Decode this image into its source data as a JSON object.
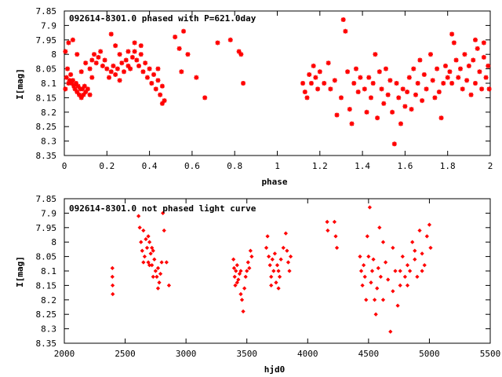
{
  "chart_data": [
    {
      "type": "scatter",
      "title": "092614-8301.0 phased with P=621.0day",
      "xlabel": "phase",
      "ylabel": "I[mag]",
      "xlim": [
        0,
        2
      ],
      "ylim": [
        8.35,
        7.85
      ],
      "y_inverted": true,
      "grid": false,
      "marker": "star",
      "color": "#ff0000",
      "xticks": [
        "0",
        "0.2",
        "0.4",
        "0.6",
        "0.8",
        "1",
        "1.2",
        "1.4",
        "1.6",
        "1.8",
        "2"
      ],
      "yticks": [
        "7.85",
        "7.9",
        "7.95",
        "8",
        "8.05",
        "8.1",
        "8.15",
        "8.2",
        "8.25",
        "8.3",
        "8.35"
      ],
      "clusters": [
        {
          "x_range": [
            0.0,
            0.1
          ],
          "y_range": [
            8.03,
            8.15
          ]
        },
        {
          "x_range": [
            0.1,
            0.2
          ],
          "y_range": [
            8.0,
            8.12
          ]
        },
        {
          "x_range": [
            0.2,
            0.3
          ],
          "y_range": [
            7.95,
            8.1
          ]
        },
        {
          "x_range": [
            0.3,
            0.4
          ],
          "y_range": [
            7.97,
            8.1
          ]
        },
        {
          "x_range": [
            0.4,
            0.48
          ],
          "y_range": [
            8.05,
            8.17
          ]
        },
        {
          "x_range": [
            0.5,
            0.85
          ],
          "y_range": [
            7.9,
            8.15
          ]
        },
        {
          "x_range": [
            1.12,
            1.4
          ],
          "y_range": [
            8.0,
            8.25
          ]
        },
        {
          "x_range": [
            1.4,
            1.6
          ],
          "y_range": [
            8.05,
            8.3
          ]
        },
        {
          "x_range": [
            1.6,
            1.8
          ],
          "y_range": [
            8.0,
            8.22
          ]
        },
        {
          "x_range": [
            1.8,
            2.0
          ],
          "y_range": [
            7.95,
            8.15
          ]
        }
      ],
      "points": [
        [
          0.005,
          8.12
        ],
        [
          0.01,
          8.08
        ],
        [
          0.015,
          8.05
        ],
        [
          0.02,
          8.1
        ],
        [
          0.025,
          8.09
        ],
        [
          0.03,
          8.07
        ],
        [
          0.035,
          8.1
        ],
        [
          0.04,
          8.09
        ],
        [
          0.045,
          8.11
        ],
        [
          0.05,
          8.12
        ],
        [
          0.055,
          8.1
        ],
        [
          0.06,
          8.13
        ],
        [
          0.065,
          8.11
        ],
        [
          0.07,
          8.14
        ],
        [
          0.075,
          8.12
        ],
        [
          0.08,
          8.15
        ],
        [
          0.085,
          8.12
        ],
        [
          0.09,
          8.14
        ],
        [
          0.095,
          8.11
        ],
        [
          0.1,
          8.13
        ],
        [
          0.005,
          7.99
        ],
        [
          0.02,
          7.96
        ],
        [
          0.04,
          7.95
        ],
        [
          0.06,
          8.0
        ],
        [
          0.08,
          8.06
        ],
        [
          0.1,
          8.03
        ],
        [
          0.12,
          8.05
        ],
        [
          0.13,
          8.02
        ],
        [
          0.14,
          8.0
        ],
        [
          0.15,
          8.03
        ],
        [
          0.16,
          8.01
        ],
        [
          0.17,
          7.99
        ],
        [
          0.18,
          8.04
        ],
        [
          0.19,
          8.02
        ],
        [
          0.2,
          8.05
        ],
        [
          0.11,
          8.12
        ],
        [
          0.12,
          8.14
        ],
        [
          0.13,
          8.08
        ],
        [
          0.21,
          8.08
        ],
        [
          0.22,
          8.06
        ],
        [
          0.23,
          8.04
        ],
        [
          0.24,
          8.07
        ],
        [
          0.25,
          8.05
        ],
        [
          0.26,
          8.09
        ],
        [
          0.27,
          8.03
        ],
        [
          0.28,
          8.06
        ],
        [
          0.29,
          8.02
        ],
        [
          0.3,
          8.04
        ],
        [
          0.22,
          7.93
        ],
        [
          0.24,
          7.97
        ],
        [
          0.26,
          8.0
        ],
        [
          0.31,
          8.05
        ],
        [
          0.32,
          8.01
        ],
        [
          0.33,
          7.99
        ],
        [
          0.34,
          8.02
        ],
        [
          0.35,
          8.04
        ],
        [
          0.36,
          8.0
        ],
        [
          0.37,
          8.06
        ],
        [
          0.38,
          8.03
        ],
        [
          0.39,
          8.08
        ],
        [
          0.4,
          8.05
        ],
        [
          0.33,
          7.96
        ],
        [
          0.36,
          7.97
        ],
        [
          0.3,
          7.99
        ],
        [
          0.41,
          8.1
        ],
        [
          0.42,
          8.07
        ],
        [
          0.43,
          8.12
        ],
        [
          0.44,
          8.09
        ],
        [
          0.45,
          8.14
        ],
        [
          0.46,
          8.11
        ],
        [
          0.47,
          8.16
        ],
        [
          0.44,
          8.05
        ],
        [
          0.46,
          8.17
        ],
        [
          0.52,
          7.94
        ],
        [
          0.54,
          7.98
        ],
        [
          0.55,
          8.06
        ],
        [
          0.56,
          7.92
        ],
        [
          0.58,
          8.0
        ],
        [
          0.62,
          8.08
        ],
        [
          0.66,
          8.15
        ],
        [
          0.72,
          7.96
        ],
        [
          0.78,
          7.95
        ],
        [
          0.82,
          7.99
        ],
        [
          0.83,
          8.0
        ],
        [
          0.84,
          8.1
        ],
        [
          1.12,
          8.1
        ],
        [
          1.13,
          8.13
        ],
        [
          1.14,
          8.15
        ],
        [
          1.15,
          8.07
        ],
        [
          1.16,
          8.1
        ],
        [
          1.17,
          8.04
        ],
        [
          1.18,
          8.08
        ],
        [
          1.19,
          8.12
        ],
        [
          1.2,
          8.06
        ],
        [
          1.22,
          8.1
        ],
        [
          1.24,
          8.03
        ],
        [
          1.25,
          8.12
        ],
        [
          1.27,
          8.09
        ],
        [
          1.28,
          8.21
        ],
        [
          1.3,
          8.15
        ],
        [
          1.31,
          7.88
        ],
        [
          1.32,
          7.92
        ],
        [
          1.33,
          8.06
        ],
        [
          1.34,
          8.19
        ],
        [
          1.35,
          8.24
        ],
        [
          1.36,
          8.1
        ],
        [
          1.37,
          8.05
        ],
        [
          1.38,
          8.13
        ],
        [
          1.39,
          8.08
        ],
        [
          1.41,
          8.12
        ],
        [
          1.42,
          8.2
        ],
        [
          1.43,
          8.08
        ],
        [
          1.44,
          8.15
        ],
        [
          1.45,
          8.1
        ],
        [
          1.46,
          8.0
        ],
        [
          1.47,
          8.22
        ],
        [
          1.48,
          8.06
        ],
        [
          1.49,
          8.12
        ],
        [
          1.5,
          8.17
        ],
        [
          1.51,
          8.05
        ],
        [
          1.52,
          8.14
        ],
        [
          1.53,
          8.09
        ],
        [
          1.54,
          8.2
        ],
        [
          1.55,
          8.31
        ],
        [
          1.56,
          8.1
        ],
        [
          1.57,
          8.15
        ],
        [
          1.58,
          8.24
        ],
        [
          1.59,
          8.12
        ],
        [
          1.6,
          8.18
        ],
        [
          1.61,
          8.13
        ],
        [
          1.62,
          8.08
        ],
        [
          1.63,
          8.19
        ],
        [
          1.64,
          8.05
        ],
        [
          1.65,
          8.14
        ],
        [
          1.66,
          8.1
        ],
        [
          1.67,
          8.02
        ],
        [
          1.68,
          8.16
        ],
        [
          1.69,
          8.07
        ],
        [
          1.7,
          8.12
        ],
        [
          1.72,
          8.0
        ],
        [
          1.73,
          8.09
        ],
        [
          1.74,
          8.15
        ],
        [
          1.75,
          8.05
        ],
        [
          1.76,
          8.13
        ],
        [
          1.77,
          8.22
        ],
        [
          1.78,
          8.1
        ],
        [
          1.79,
          8.04
        ],
        [
          1.8,
          8.08
        ],
        [
          1.81,
          8.06
        ],
        [
          1.82,
          8.1
        ],
        [
          1.83,
          7.96
        ],
        [
          1.84,
          8.02
        ],
        [
          1.85,
          8.08
        ],
        [
          1.86,
          8.05
        ],
        [
          1.87,
          8.12
        ],
        [
          1.88,
          8.0
        ],
        [
          1.89,
          8.09
        ],
        [
          1.9,
          8.04
        ],
        [
          1.91,
          8.14
        ],
        [
          1.92,
          8.02
        ],
        [
          1.93,
          8.1
        ],
        [
          1.94,
          7.98
        ],
        [
          1.95,
          8.06
        ],
        [
          1.96,
          8.12
        ],
        [
          1.97,
          8.01
        ],
        [
          1.98,
          8.08
        ],
        [
          1.99,
          8.04
        ],
        [
          1.995,
          8.12
        ],
        [
          1.82,
          7.93
        ],
        [
          1.93,
          7.95
        ],
        [
          1.97,
          7.96
        ]
      ]
    },
    {
      "type": "scatter",
      "title": "092614-8301.0 not phased light curve",
      "xlabel": "hjd0",
      "ylabel": "I[mag]",
      "xlim": [
        2000,
        5500
      ],
      "ylim": [
        8.35,
        7.85
      ],
      "y_inverted": true,
      "grid": false,
      "marker": "diamond",
      "color": "#ff0000",
      "xticks": [
        "2000",
        "2500",
        "3000",
        "3500",
        "4000",
        "4500",
        "5000",
        "5500"
      ],
      "yticks": [
        "7.85",
        "7.9",
        "7.95",
        "8",
        "8.05",
        "8.1",
        "8.15",
        "8.2",
        "8.25",
        "8.3",
        "8.35"
      ],
      "points": [
        [
          2395,
          8.09
        ],
        [
          2395,
          8.12
        ],
        [
          2397,
          8.15
        ],
        [
          2398,
          8.18
        ],
        [
          2610,
          7.91
        ],
        [
          2620,
          7.95
        ],
        [
          2630,
          8.0
        ],
        [
          2640,
          8.03
        ],
        [
          2650,
          7.96
        ],
        [
          2660,
          8.05
        ],
        [
          2670,
          7.99
        ],
        [
          2680,
          8.02
        ],
        [
          2690,
          8.07
        ],
        [
          2700,
          8.0
        ],
        [
          2710,
          8.04
        ],
        [
          2720,
          8.08
        ],
        [
          2730,
          8.03
        ],
        [
          2740,
          8.06
        ],
        [
          2750,
          8.1
        ],
        [
          2760,
          8.12
        ],
        [
          2770,
          8.09
        ],
        [
          2780,
          8.14
        ],
        [
          2790,
          8.11
        ],
        [
          2800,
          8.07
        ],
        [
          2810,
          7.9
        ],
        [
          2820,
          7.96
        ],
        [
          2840,
          8.07
        ],
        [
          2860,
          8.15
        ],
        [
          2650,
          8.07
        ],
        [
          2690,
          7.98
        ],
        [
          2730,
          8.12
        ],
        [
          2770,
          8.16
        ],
        [
          2700,
          8.08
        ],
        [
          2720,
          8.02
        ],
        [
          3390,
          8.06
        ],
        [
          3395,
          8.09
        ],
        [
          3400,
          8.12
        ],
        [
          3405,
          8.15
        ],
        [
          3410,
          8.1
        ],
        [
          3420,
          8.08
        ],
        [
          3430,
          8.13
        ],
        [
          3440,
          8.11
        ],
        [
          3450,
          8.18
        ],
        [
          3460,
          8.2
        ],
        [
          3470,
          8.24
        ],
        [
          3480,
          8.16
        ],
        [
          3490,
          8.12
        ],
        [
          3500,
          8.1
        ],
        [
          3510,
          8.07
        ],
        [
          3520,
          8.09
        ],
        [
          3530,
          8.03
        ],
        [
          3540,
          8.05
        ],
        [
          3420,
          8.14
        ],
        [
          3450,
          8.1
        ],
        [
          3660,
          8.02
        ],
        [
          3670,
          7.98
        ],
        [
          3680,
          8.05
        ],
        [
          3690,
          8.08
        ],
        [
          3700,
          8.12
        ],
        [
          3710,
          8.06
        ],
        [
          3720,
          8.1
        ],
        [
          3730,
          8.04
        ],
        [
          3740,
          8.14
        ],
        [
          3750,
          8.08
        ],
        [
          3760,
          8.1
        ],
        [
          3770,
          8.12
        ],
        [
          3780,
          8.06
        ],
        [
          3800,
          8.02
        ],
        [
          3820,
          7.97
        ],
        [
          3830,
          8.03
        ],
        [
          3840,
          8.07
        ],
        [
          3850,
          8.1
        ],
        [
          3860,
          8.05
        ],
        [
          3700,
          8.15
        ],
        [
          3760,
          8.16
        ],
        [
          4160,
          7.93
        ],
        [
          4165,
          7.96
        ],
        [
          4220,
          7.93
        ],
        [
          4230,
          7.98
        ],
        [
          4240,
          8.02
        ],
        [
          4430,
          8.05
        ],
        [
          4440,
          8.1
        ],
        [
          4450,
          8.15
        ],
        [
          4460,
          8.08
        ],
        [
          4470,
          8.12
        ],
        [
          4480,
          8.2
        ],
        [
          4490,
          7.98
        ],
        [
          4500,
          8.05
        ],
        [
          4510,
          7.88
        ],
        [
          4520,
          8.14
        ],
        [
          4530,
          8.1
        ],
        [
          4540,
          8.06
        ],
        [
          4550,
          8.2
        ],
        [
          4560,
          8.25
        ],
        [
          4570,
          8.16
        ],
        [
          4580,
          8.09
        ],
        [
          4600,
          8.12
        ],
        [
          4620,
          8.2
        ],
        [
          4640,
          8.07
        ],
        [
          4660,
          8.13
        ],
        [
          4680,
          8.31
        ],
        [
          4700,
          8.17
        ],
        [
          4720,
          8.1
        ],
        [
          4740,
          8.22
        ],
        [
          4760,
          8.15
        ],
        [
          4780,
          8.05
        ],
        [
          4800,
          8.12
        ],
        [
          4820,
          8.08
        ],
        [
          4840,
          8.1
        ],
        [
          4860,
          8.0
        ],
        [
          4880,
          8.06
        ],
        [
          4900,
          8.12
        ],
        [
          4920,
          7.96
        ],
        [
          4940,
          8.04
        ],
        [
          4960,
          8.08
        ],
        [
          4980,
          7.98
        ],
        [
          5000,
          7.94
        ],
        [
          5010,
          8.02
        ],
        [
          4590,
          7.95
        ],
        [
          4620,
          8.0
        ],
        [
          4700,
          8.02
        ],
        [
          4760,
          8.1
        ],
        [
          4820,
          8.15
        ],
        [
          4880,
          8.03
        ],
        [
          4940,
          8.1
        ]
      ]
    }
  ]
}
